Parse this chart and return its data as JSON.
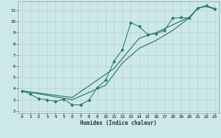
{
  "xlabel": "Humidex (Indice chaleur)",
  "bg_color": "#cce8e8",
  "grid_color": "#b8d4d4",
  "line_color": "#2a7a6e",
  "xlim": [
    -0.5,
    23.5
  ],
  "ylim": [
    1.8,
    11.8
  ],
  "xticks": [
    0,
    1,
    2,
    3,
    4,
    5,
    6,
    7,
    8,
    9,
    10,
    11,
    12,
    13,
    14,
    15,
    16,
    17,
    18,
    19,
    20,
    21,
    22,
    23
  ],
  "yticks": [
    2,
    3,
    4,
    5,
    6,
    7,
    8,
    9,
    10,
    11
  ],
  "jagged_x": [
    0,
    1,
    2,
    3,
    4,
    5,
    6,
    7,
    8,
    9,
    10,
    11,
    12,
    13,
    14,
    15,
    16,
    17,
    18,
    19,
    20,
    21,
    22,
    23
  ],
  "jagged_y": [
    3.8,
    3.5,
    3.1,
    3.0,
    2.85,
    3.05,
    2.55,
    2.55,
    2.95,
    4.1,
    4.75,
    6.45,
    7.5,
    9.9,
    9.55,
    8.85,
    8.9,
    9.2,
    10.3,
    10.35,
    10.3,
    11.2,
    11.4,
    11.15
  ],
  "line_upper_x": [
    0,
    6,
    11,
    14,
    16,
    18,
    20,
    21,
    22,
    23
  ],
  "line_upper_y": [
    3.8,
    3.2,
    5.8,
    8.5,
    9.0,
    9.7,
    10.4,
    11.2,
    11.35,
    11.1
  ],
  "line_lower_x": [
    0,
    6,
    10,
    12,
    14,
    16,
    18,
    20,
    21,
    22,
    23
  ],
  "line_lower_y": [
    3.8,
    3.0,
    4.3,
    6.3,
    7.6,
    8.3,
    9.2,
    10.35,
    11.2,
    11.4,
    11.15
  ]
}
